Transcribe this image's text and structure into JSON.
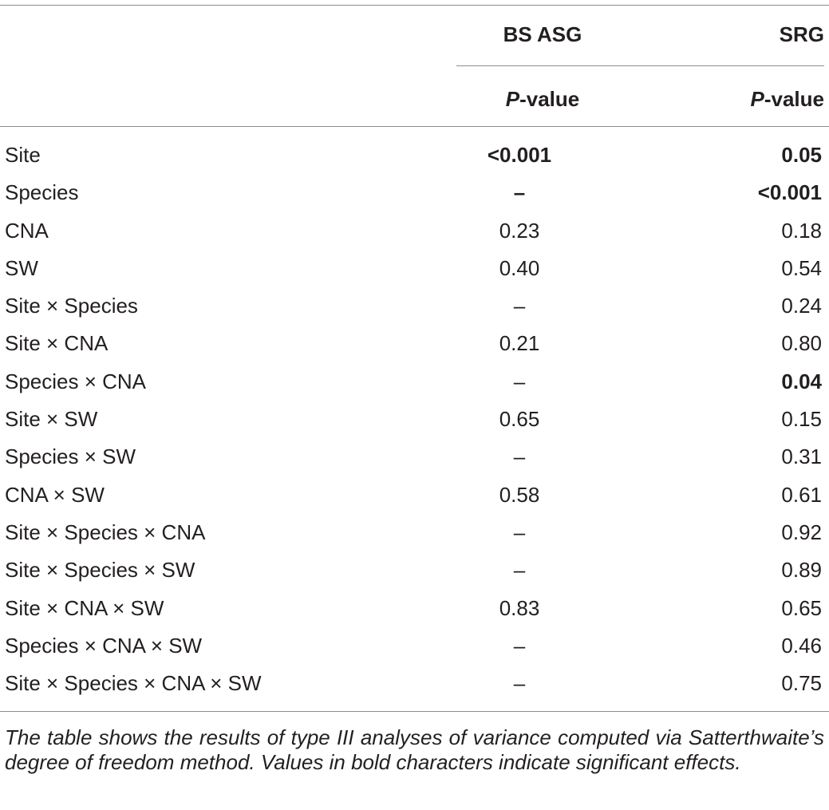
{
  "table": {
    "header": {
      "col1_group": "BS ASG",
      "col2_group": "SRG",
      "stat_italic": "P",
      "stat_rest": "-value"
    },
    "rows": [
      {
        "label": "Site",
        "bs_asg": "<0.001",
        "srg": "0.05",
        "bs_bold": true,
        "srg_bold": true
      },
      {
        "label": "Species",
        "bs_asg": "–",
        "srg": "<0.001",
        "bs_bold": true,
        "srg_bold": true
      },
      {
        "label": "CNA",
        "bs_asg": "0.23",
        "srg": "0.18",
        "bs_bold": false,
        "srg_bold": false
      },
      {
        "label": "SW",
        "bs_asg": "0.40",
        "srg": "0.54",
        "bs_bold": false,
        "srg_bold": false
      },
      {
        "label": "Site × Species",
        "bs_asg": "–",
        "srg": "0.24",
        "bs_bold": false,
        "srg_bold": false
      },
      {
        "label": "Site × CNA",
        "bs_asg": "0.21",
        "srg": "0.80",
        "bs_bold": false,
        "srg_bold": false
      },
      {
        "label": "Species × CNA",
        "bs_asg": "–",
        "srg": "0.04",
        "bs_bold": false,
        "srg_bold": true
      },
      {
        "label": "Site × SW",
        "bs_asg": "0.65",
        "srg": "0.15",
        "bs_bold": false,
        "srg_bold": false
      },
      {
        "label": "Species × SW",
        "bs_asg": "–",
        "srg": "0.31",
        "bs_bold": false,
        "srg_bold": false
      },
      {
        "label": "CNA × SW",
        "bs_asg": "0.58",
        "srg": "0.61",
        "bs_bold": false,
        "srg_bold": false
      },
      {
        "label": "Site × Species × CNA",
        "bs_asg": "–",
        "srg": "0.92",
        "bs_bold": false,
        "srg_bold": false
      },
      {
        "label": "Site × Species × SW",
        "bs_asg": "–",
        "srg": "0.89",
        "bs_bold": false,
        "srg_bold": false
      },
      {
        "label": "Site × CNA × SW",
        "bs_asg": "0.83",
        "srg": "0.65",
        "bs_bold": false,
        "srg_bold": false
      },
      {
        "label": "Species × CNA × SW",
        "bs_asg": "–",
        "srg": "0.46",
        "bs_bold": false,
        "srg_bold": false
      },
      {
        "label": "Site × Species × CNA × SW",
        "bs_asg": "–",
        "srg": "0.75",
        "bs_bold": false,
        "srg_bold": false
      }
    ],
    "footnote": "The table shows the results of type III analyses of variance computed via Satterthwaite’s degree of freedom method. Values in bold characters indicate significant effects."
  }
}
